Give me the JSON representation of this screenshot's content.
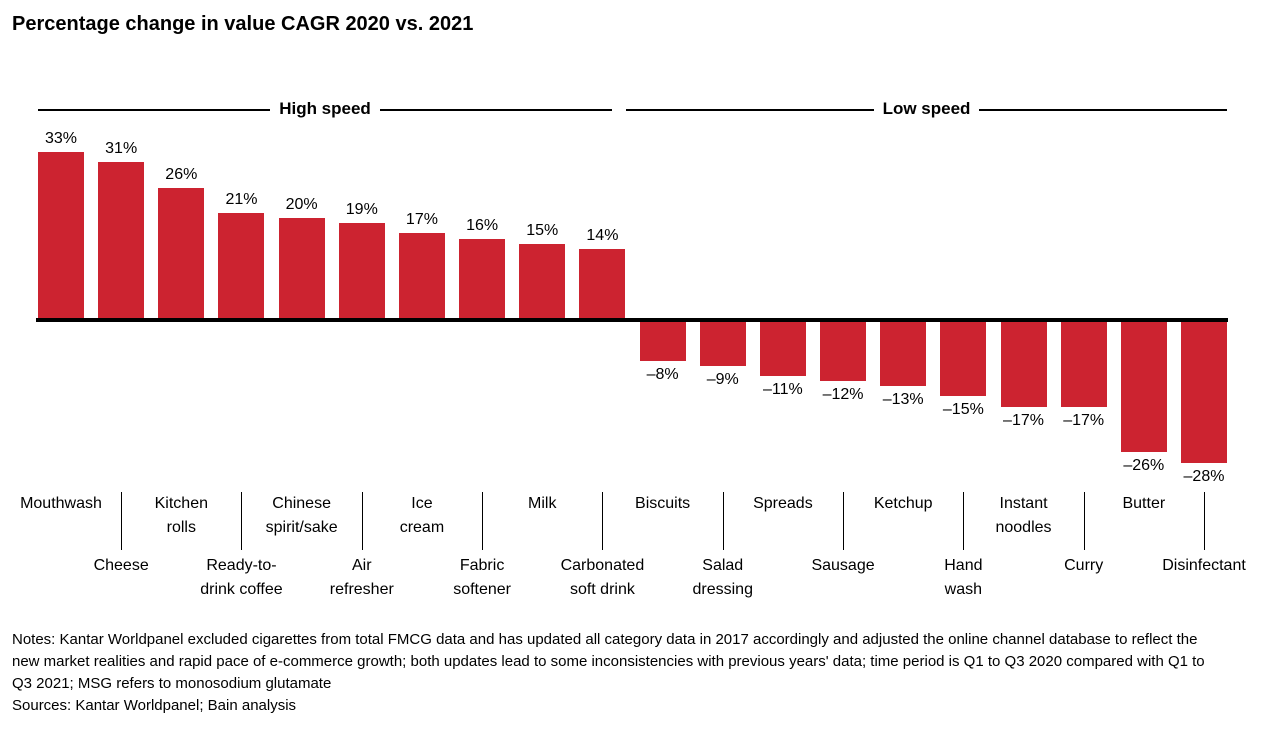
{
  "chart_data": {
    "type": "bar",
    "title": "Percentage change in value CAGR 2020 vs. 2021",
    "groups": [
      {
        "label": "High speed",
        "category_span": [
          0,
          9
        ]
      },
      {
        "label": "Low speed",
        "category_span": [
          10,
          19
        ]
      }
    ],
    "categories": [
      {
        "name": "Mouthwash",
        "lines": [
          "Mouthwash"
        ]
      },
      {
        "name": "Cheese",
        "lines": [
          "Cheese"
        ]
      },
      {
        "name": "Kitchen rolls",
        "lines": [
          "Kitchen",
          "rolls"
        ]
      },
      {
        "name": "Ready-to-drink coffee",
        "lines": [
          "Ready-to-",
          "drink coffee"
        ]
      },
      {
        "name": "Chinese spirit/sake",
        "lines": [
          "Chinese",
          "spirit/sake"
        ]
      },
      {
        "name": "Air refresher",
        "lines": [
          "Air",
          "refresher"
        ]
      },
      {
        "name": "Ice cream",
        "lines": [
          "Ice",
          "cream"
        ]
      },
      {
        "name": "Fabric softener",
        "lines": [
          "Fabric",
          "softener"
        ]
      },
      {
        "name": "Milk",
        "lines": [
          "Milk"
        ]
      },
      {
        "name": "Carbonated soft drink",
        "lines": [
          "Carbonated",
          "soft drink"
        ]
      },
      {
        "name": "Biscuits",
        "lines": [
          "Biscuits"
        ]
      },
      {
        "name": "Salad dressing",
        "lines": [
          "Salad",
          "dressing"
        ]
      },
      {
        "name": "Spreads",
        "lines": [
          "Spreads"
        ]
      },
      {
        "name": "Sausage",
        "lines": [
          "Sausage"
        ]
      },
      {
        "name": "Ketchup",
        "lines": [
          "Ketchup"
        ]
      },
      {
        "name": "Hand wash",
        "lines": [
          "Hand",
          "wash"
        ]
      },
      {
        "name": "Instant noodles",
        "lines": [
          "Instant",
          "noodles"
        ]
      },
      {
        "name": "Curry",
        "lines": [
          "Curry"
        ]
      },
      {
        "name": "Butter",
        "lines": [
          "Butter"
        ]
      },
      {
        "name": "Disinfectant",
        "lines": [
          "Disinfectant"
        ]
      }
    ],
    "values": [
      33,
      31,
      26,
      21,
      20,
      19,
      17,
      16,
      15,
      14,
      -8,
      -9,
      -11,
      -12,
      -13,
      -15,
      -17,
      -17,
      -26,
      -28
    ],
    "value_labels": [
      "33%",
      "31%",
      "26%",
      "21%",
      "20%",
      "19%",
      "17%",
      "16%",
      "15%",
      "14%",
      "–8%",
      "–9%",
      "–11%",
      "–12%",
      "–13%",
      "–15%",
      "–17%",
      "–17%",
      "–26%",
      "–28%"
    ],
    "bar_color": "#cc2330",
    "axis_color": "#000000",
    "ylim": [
      -30,
      35
    ],
    "grid": false,
    "legend": "none"
  },
  "notes": "Notes: Kantar Worldpanel excluded cigarettes from total FMCG data and has updated all category data in 2017 accordingly and adjusted the online channel database to reflect the new market realities and rapid pace of e-commerce growth; both updates lead to some inconsistencies with previous years' data; time period is Q1 to Q3 2020 compared with Q1 to Q3 2021; MSG refers to monosodium glutamate",
  "sources": "Sources: Kantar Worldpanel; Bain analysis"
}
